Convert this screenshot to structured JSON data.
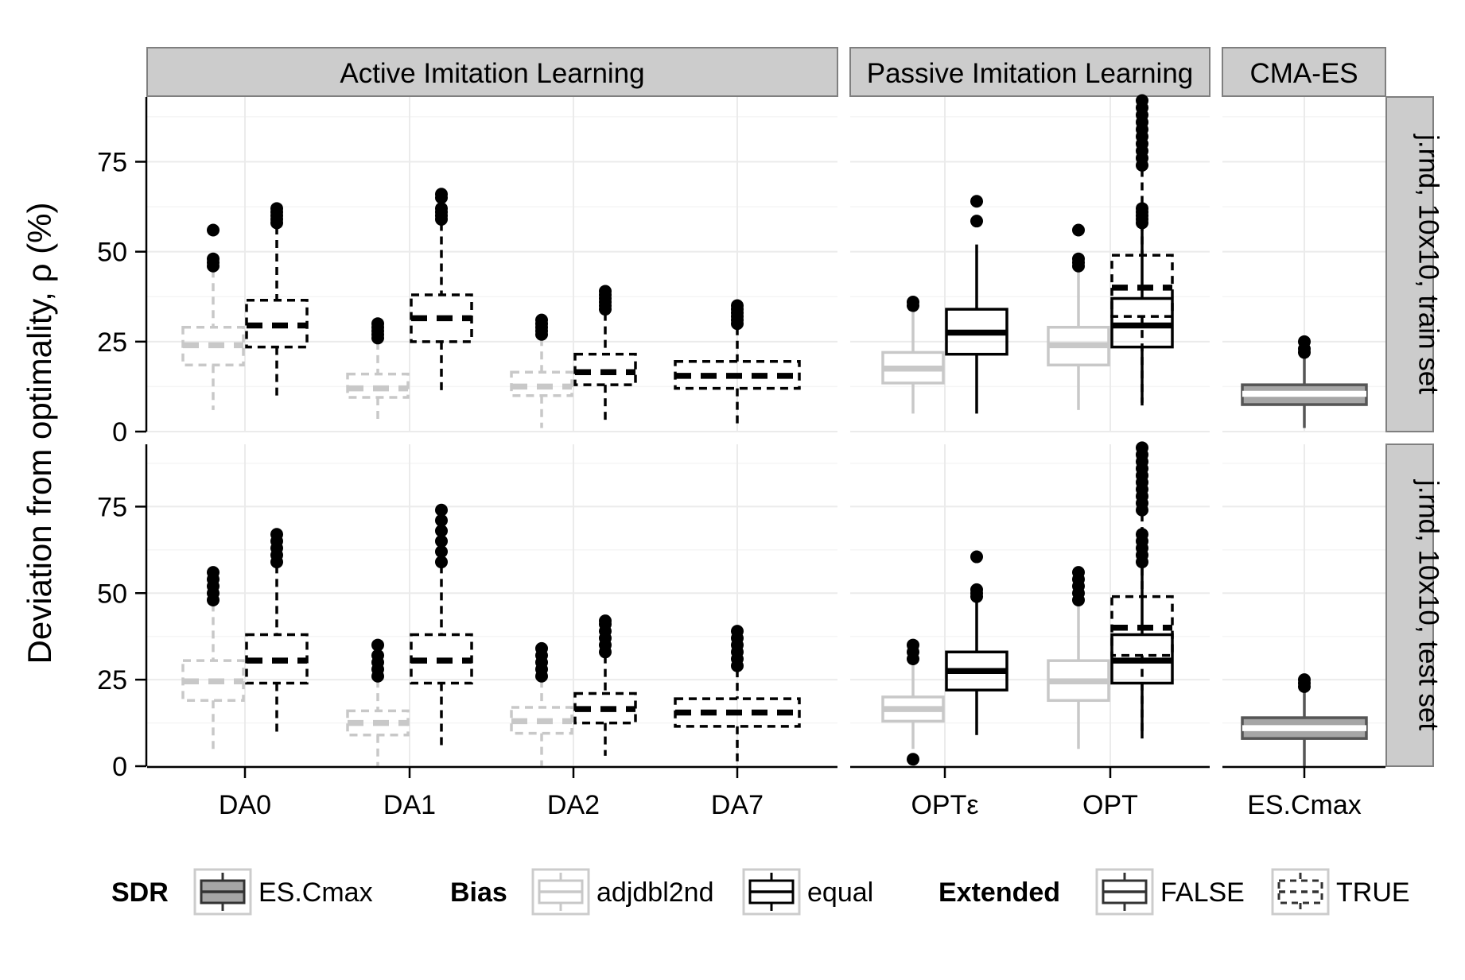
{
  "chart_data": {
    "type": "boxplot",
    "ylabel": "Deviation from optimality, ρ  (%)",
    "yticks": [
      0,
      25,
      50,
      75
    ],
    "ylim": [
      0,
      93
    ],
    "grid": true,
    "legend_position": "bottom",
    "colors": {
      "equal": "#000000",
      "adjdbl2nd": "#c8c8c8",
      "ES.Cmax": "#555555",
      "ES.Cmax_fill": "#a6a6a6",
      "strip_bg": "#cccccc",
      "panel_border": "#7f7f7f",
      "grid": "#ebebeb"
    },
    "column_panels": [
      {
        "label": "Active Imitation Learning",
        "categories": [
          "DA0",
          "DA1",
          "DA2",
          "DA7"
        ]
      },
      {
        "label": "Passive Imitation Learning",
        "categories": [
          "OPTε",
          "OPT"
        ]
      },
      {
        "label": "CMA-ES",
        "categories": [
          "ES.Cmax"
        ]
      }
    ],
    "row_panels": [
      {
        "label": "j.rnd, 10x10, train set"
      },
      {
        "label": "j.rnd, 10x10, test set"
      }
    ],
    "series": [
      {
        "row": 0,
        "col": 0,
        "cat": "DA0",
        "bias": "adjdbl2nd",
        "extended": true,
        "min": 6,
        "q1": 18.5,
        "median": 24,
        "q3": 29,
        "max": 45,
        "outliers": [
          46,
          47,
          48,
          56
        ]
      },
      {
        "row": 0,
        "col": 0,
        "cat": "DA0",
        "bias": "equal",
        "extended": true,
        "min": 10,
        "q1": 23.5,
        "median": 29.5,
        "q3": 36.5,
        "max": 57,
        "outliers": [
          58,
          59,
          60,
          61,
          62
        ]
      },
      {
        "row": 0,
        "col": 0,
        "cat": "DA1",
        "bias": "adjdbl2nd",
        "extended": true,
        "min": 3,
        "q1": 9.5,
        "median": 12,
        "q3": 16,
        "max": 25,
        "outliers": [
          26,
          27,
          28,
          29,
          30
        ]
      },
      {
        "row": 0,
        "col": 0,
        "cat": "DA1",
        "bias": "equal",
        "extended": true,
        "min": 11,
        "q1": 25,
        "median": 31.5,
        "q3": 38,
        "max": 58,
        "outliers": [
          59,
          60,
          61,
          62,
          65,
          66
        ]
      },
      {
        "row": 0,
        "col": 0,
        "cat": "DA2",
        "bias": "adjdbl2nd",
        "extended": true,
        "min": 1,
        "q1": 10,
        "median": 12.5,
        "q3": 16.5,
        "max": 26,
        "outliers": [
          27,
          28,
          29,
          30,
          31
        ]
      },
      {
        "row": 0,
        "col": 0,
        "cat": "DA2",
        "bias": "equal",
        "extended": true,
        "min": 3,
        "q1": 13,
        "median": 16.5,
        "q3": 21.5,
        "max": 33,
        "outliers": [
          34,
          35,
          36,
          37,
          38,
          39
        ]
      },
      {
        "row": 0,
        "col": 0,
        "cat": "DA7",
        "bias": "equal",
        "extended": true,
        "min": 2,
        "q1": 12,
        "median": 15.5,
        "q3": 19.5,
        "max": 29,
        "outliers": [
          30,
          31,
          32,
          33,
          34,
          35
        ]
      },
      {
        "row": 0,
        "col": 1,
        "cat": "OPTε",
        "bias": "adjdbl2nd",
        "extended": false,
        "min": 5,
        "q1": 13.5,
        "median": 17.5,
        "q3": 22,
        "max": 34,
        "outliers": [
          35,
          36
        ]
      },
      {
        "row": 0,
        "col": 1,
        "cat": "OPTε",
        "bias": "equal",
        "extended": false,
        "min": 5,
        "q1": 21.5,
        "median": 27.5,
        "q3": 34,
        "max": 52,
        "outliers": [
          58.5,
          64
        ]
      },
      {
        "row": 0,
        "col": 1,
        "cat": "OPT",
        "bias": "adjdbl2nd",
        "extended": false,
        "min": 6,
        "q1": 18.5,
        "median": 24,
        "q3": 29,
        "max": 45,
        "outliers": [
          46,
          47,
          48,
          56
        ]
      },
      {
        "row": 0,
        "col": 1,
        "cat": "OPT",
        "bias": "equal",
        "extended": false,
        "min": 8,
        "q1": 23.5,
        "median": 29.5,
        "q3": 37,
        "max": 57,
        "outliers": [
          58,
          59,
          60,
          61,
          62
        ]
      },
      {
        "row": 0,
        "col": 1,
        "cat": "OPT",
        "bias": "equal",
        "extended": true,
        "min": 7,
        "q1": 32,
        "median": 40,
        "q3": 49,
        "max": 73,
        "outliers": [
          74,
          76,
          78,
          80,
          82,
          84,
          86,
          88,
          90,
          92
        ]
      },
      {
        "row": 0,
        "col": 2,
        "cat": "ES.Cmax",
        "bias": "ES.Cmax",
        "extended": false,
        "min": 1,
        "q1": 7.5,
        "median": 10.5,
        "q3": 13,
        "max": 21,
        "outliers": [
          22,
          23,
          25
        ]
      },
      {
        "row": 1,
        "col": 0,
        "cat": "DA0",
        "bias": "adjdbl2nd",
        "extended": true,
        "min": 5,
        "q1": 19,
        "median": 24.5,
        "q3": 30.5,
        "max": 47,
        "outliers": [
          48,
          50,
          52,
          54,
          56
        ]
      },
      {
        "row": 1,
        "col": 0,
        "cat": "DA0",
        "bias": "equal",
        "extended": true,
        "min": 10,
        "q1": 24,
        "median": 30.5,
        "q3": 38,
        "max": 58,
        "outliers": [
          59,
          61,
          63,
          65,
          67
        ]
      },
      {
        "row": 1,
        "col": 0,
        "cat": "DA1",
        "bias": "adjdbl2nd",
        "extended": true,
        "min": 0,
        "q1": 9,
        "median": 12.5,
        "q3": 16,
        "max": 25,
        "outliers": [
          26,
          28,
          30,
          32,
          35
        ]
      },
      {
        "row": 1,
        "col": 0,
        "cat": "DA1",
        "bias": "equal",
        "extended": true,
        "min": 6,
        "q1": 24,
        "median": 30.5,
        "q3": 38,
        "max": 58,
        "outliers": [
          59,
          62,
          65,
          68,
          71,
          74
        ]
      },
      {
        "row": 1,
        "col": 0,
        "cat": "DA2",
        "bias": "adjdbl2nd",
        "extended": true,
        "min": 0,
        "q1": 9.5,
        "median": 13,
        "q3": 17,
        "max": 25,
        "outliers": [
          26,
          28,
          30,
          32,
          34
        ]
      },
      {
        "row": 1,
        "col": 0,
        "cat": "DA2",
        "bias": "equal",
        "extended": true,
        "min": 3,
        "q1": 12.5,
        "median": 16.5,
        "q3": 21,
        "max": 32,
        "outliers": [
          33,
          35,
          37,
          39,
          41,
          42
        ]
      },
      {
        "row": 1,
        "col": 0,
        "cat": "DA7",
        "bias": "equal",
        "extended": true,
        "min": 0,
        "q1": 11.5,
        "median": 15.5,
        "q3": 19.5,
        "max": 28,
        "outliers": [
          29,
          31,
          33,
          35,
          37,
          39
        ]
      },
      {
        "row": 1,
        "col": 1,
        "cat": "OPTε",
        "bias": "adjdbl2nd",
        "extended": false,
        "min": 5,
        "q1": 13,
        "median": 16.5,
        "q3": 20,
        "max": 30,
        "outliers": [
          2,
          31,
          33,
          35
        ]
      },
      {
        "row": 1,
        "col": 1,
        "cat": "OPTε",
        "bias": "equal",
        "extended": false,
        "min": 9,
        "q1": 22,
        "median": 27.5,
        "q3": 33,
        "max": 48,
        "outliers": [
          49,
          50,
          51,
          60.5
        ]
      },
      {
        "row": 1,
        "col": 1,
        "cat": "OPT",
        "bias": "adjdbl2nd",
        "extended": false,
        "min": 5,
        "q1": 19,
        "median": 24.5,
        "q3": 30.5,
        "max": 47,
        "outliers": [
          48,
          50,
          52,
          54,
          56
        ]
      },
      {
        "row": 1,
        "col": 1,
        "cat": "OPT",
        "bias": "equal",
        "extended": false,
        "min": 8,
        "q1": 24,
        "median": 30.5,
        "q3": 38,
        "max": 58,
        "outliers": [
          59,
          61,
          63,
          65,
          67
        ]
      },
      {
        "row": 1,
        "col": 1,
        "cat": "OPT",
        "bias": "equal",
        "extended": true,
        "min": 10,
        "q1": 32,
        "median": 40,
        "q3": 49,
        "max": 73,
        "outliers": [
          74,
          76,
          78,
          80,
          82,
          84,
          86,
          88,
          90,
          92
        ]
      },
      {
        "row": 1,
        "col": 2,
        "cat": "ES.Cmax",
        "bias": "ES.Cmax",
        "extended": false,
        "min": 0,
        "q1": 8,
        "median": 11,
        "q3": 14,
        "max": 22,
        "outliers": [
          23,
          24,
          25
        ]
      }
    ]
  },
  "legend": {
    "groups": [
      {
        "title": "SDR",
        "items": [
          {
            "label": "ES.Cmax",
            "style": "ES.Cmax"
          }
        ]
      },
      {
        "title": "Bias",
        "items": [
          {
            "label": "adjdbl2nd",
            "style": "adjdbl2nd"
          },
          {
            "label": "equal",
            "style": "equal"
          }
        ]
      },
      {
        "title": "Extended",
        "items": [
          {
            "label": "FALSE",
            "style": "false"
          },
          {
            "label": "TRUE",
            "style": "true"
          }
        ]
      }
    ]
  }
}
